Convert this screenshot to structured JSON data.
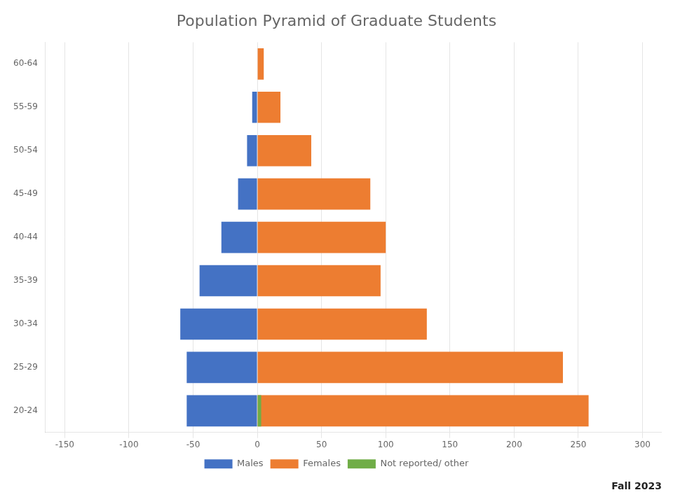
{
  "chart_data": {
    "type": "bar",
    "orientation": "horizontal",
    "title": "Population Pyramid of Graduate Students",
    "categories": [
      "20-24",
      "25-29",
      "30-34",
      "35-39",
      "40-44",
      "45-49",
      "50-54",
      "55-59",
      "60-64"
    ],
    "series": [
      {
        "name": "Males",
        "color": "#4472C4",
        "values": [
          -55,
          -55,
          -60,
          -45,
          -28,
          -15,
          -8,
          -4,
          0
        ]
      },
      {
        "name": "Females",
        "color": "#ED7D31",
        "values": [
          258,
          238,
          132,
          96,
          100,
          88,
          42,
          18,
          5
        ]
      },
      {
        "name": "Not reported/\nother",
        "color": "#70AD47",
        "values": [
          3,
          null,
          null,
          null,
          null,
          null,
          null,
          null,
          null
        ]
      }
    ],
    "xlim": [
      -165,
      315
    ],
    "xticks": [
      -150,
      -100,
      -50,
      0,
      50,
      100,
      150,
      200,
      250,
      300
    ],
    "grid": true,
    "legend": "bottom",
    "annotations": [
      "Fall 2023"
    ]
  }
}
